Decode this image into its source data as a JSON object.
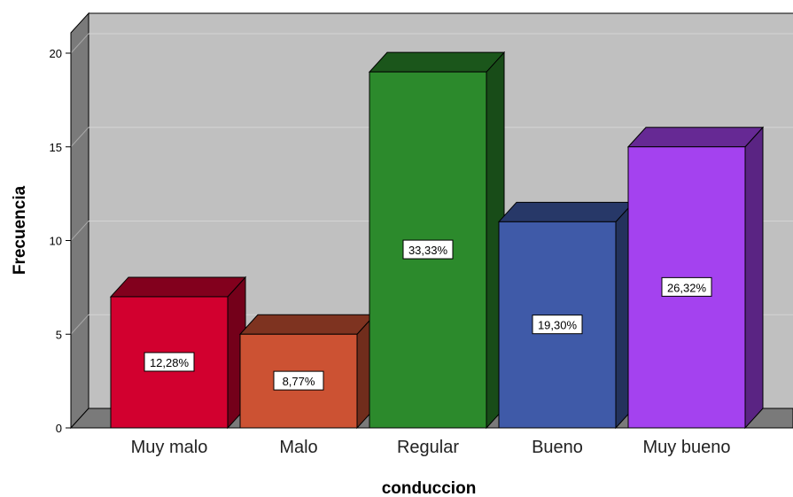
{
  "chart_data": {
    "type": "bar",
    "style": "3d",
    "title": "",
    "xlabel": "conduccion",
    "ylabel": "Frecuencia",
    "categories": [
      "Muy malo",
      "Malo",
      "Regular",
      "Bueno",
      "Muy bueno"
    ],
    "values": [
      7,
      5,
      19,
      11,
      15
    ],
    "data_labels": [
      "12,28%",
      "8,77%",
      "33,33%",
      "19,30%",
      "26,32%"
    ],
    "colors": [
      "#d2002f",
      "#cc5233",
      "#2c8a2c",
      "#3f5aa8",
      "#a442ef"
    ],
    "yticks": [
      0,
      5,
      10,
      15,
      20
    ],
    "ylim": [
      0,
      20
    ],
    "grid": true,
    "legend": "none",
    "background_color": "#c0c0c0"
  }
}
